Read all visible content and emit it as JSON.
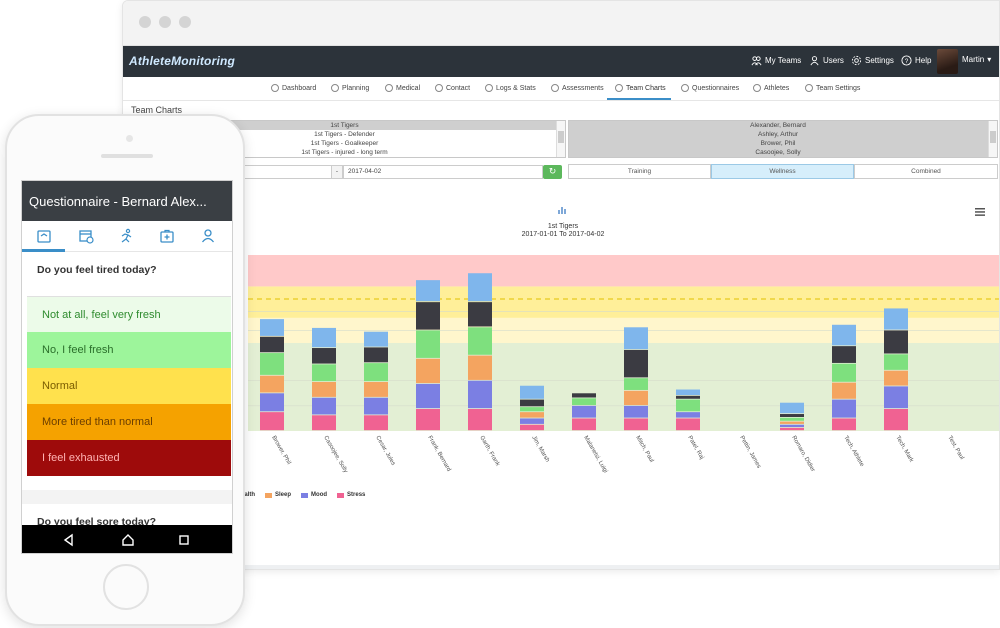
{
  "app": {
    "logo": "AthleteMonitoring",
    "top_nav": [
      {
        "label": "My Teams",
        "icon": "users-icon"
      },
      {
        "label": "Users",
        "icon": "user-icon"
      },
      {
        "label": "Settings",
        "icon": "gear-icon"
      },
      {
        "label": "Help",
        "icon": "help-icon"
      }
    ],
    "user_name": "Martin",
    "sub_nav": [
      {
        "label": "Dashboard"
      },
      {
        "label": "Planning"
      },
      {
        "label": "Medical"
      },
      {
        "label": "Contact"
      },
      {
        "label": "Logs & Stats"
      },
      {
        "label": "Assessments"
      },
      {
        "label": "Team Charts"
      },
      {
        "label": "Questionnaires"
      },
      {
        "label": "Athletes"
      },
      {
        "label": "Team Settings"
      }
    ],
    "active_tab": "Team Charts",
    "page_title": "Team Charts",
    "team_list": [
      "1st Tigers",
      "1st Tigers - Defender",
      "1st Tigers - Goalkeeper",
      "1st Tigers - injured - long term"
    ],
    "athlete_list": [
      "Alexander, Bernard",
      "Ashley, Arthur",
      "Brower, Phil",
      "Casoojee, Solly"
    ],
    "date_separator": "-",
    "date_to": "2017-04-02",
    "segments": [
      "Training",
      "Wellness",
      "Combined"
    ],
    "active_segment": "Wellness",
    "colors": {
      "accent": "#3b8ec8",
      "nav_bg": "#2c333a",
      "green": "#5cb85c"
    }
  },
  "chart_data": {
    "type": "bar",
    "stacked": true,
    "title": "1st Tigers",
    "subtitle": "2017-01-01 To 2017-04-02",
    "categories": [
      "Brower, Phil",
      "Casoojee, Solly",
      "Cesar, Jules",
      "Frank, Bernard",
      "Garth, Frank",
      "Jim, Marsh",
      "Malanetsi, Luigi",
      "Mitch, Paul",
      "Patel, Raj",
      "Pettin, James",
      "Romaro, Didier",
      "Tech, Athlete",
      "Tech, Mark",
      "Test, Paul"
    ],
    "series": [
      {
        "name": "Stress",
        "color": "#f06292",
        "values": [
          3,
          2.5,
          2.5,
          3.5,
          3.5,
          1,
          2,
          2,
          2,
          0,
          0.5,
          2,
          3.5,
          0
        ]
      },
      {
        "name": "Mood",
        "color": "#7b7fe3",
        "values": [
          3,
          2.8,
          2.8,
          4,
          4.5,
          1,
          2,
          2,
          1,
          0,
          0.5,
          3,
          3.6,
          0
        ]
      },
      {
        "name": "Sleep",
        "color": "#f4a460",
        "values": [
          2.8,
          2.5,
          2.5,
          4,
          4,
          1,
          0,
          2.4,
          0,
          0,
          0.5,
          2.7,
          2.5,
          0
        ]
      },
      {
        "name": "",
        "color": "#7ee07e",
        "values": [
          3.6,
          2.8,
          3,
          4.5,
          4.5,
          0.8,
          1.2,
          2,
          2,
          0,
          0.6,
          3,
          2.6,
          0
        ]
      },
      {
        "name": "",
        "color": "#3b3b42",
        "values": [
          2.6,
          2.6,
          2.5,
          4.5,
          4,
          1.2,
          0.8,
          4.5,
          0.6,
          0,
          0.6,
          2.8,
          3.8,
          0
        ]
      },
      {
        "name": "",
        "color": "#7fb6ec",
        "values": [
          2.8,
          3.2,
          2.5,
          3.5,
          4.6,
          2.2,
          0,
          3.6,
          1,
          0,
          1.8,
          3.4,
          3.5,
          0
        ]
      }
    ],
    "ylim": [
      0,
      28
    ],
    "bands": [
      {
        "from": 0,
        "to": 14,
        "color": "#e3efd4"
      },
      {
        "from": 14,
        "to": 18,
        "color": "#fff6cc"
      },
      {
        "from": 18,
        "to": 23,
        "color": "#ffef99"
      },
      {
        "from": 23,
        "to": 28,
        "color": "#ffc9c9"
      }
    ],
    "reference_line": 21
  },
  "phone": {
    "header": "Questionnaire - Bernard Alex...",
    "tabs": [
      "scale-icon",
      "calendar-icon",
      "runner-icon",
      "medkit-icon",
      "person-icon"
    ],
    "question1": "Do you feel tired today?",
    "options": [
      {
        "label": "Not at all, feel very fresh",
        "bg": "#ecfbe9",
        "fg": "#2e8b2e"
      },
      {
        "label": "No, I feel fresh",
        "bg": "#9df59b",
        "fg": "#2a6e2a"
      },
      {
        "label": "Normal",
        "bg": "#ffe14d",
        "fg": "#7a5c00"
      },
      {
        "label": "More tired than normal",
        "bg": "#f5a200",
        "fg": "#6b3e00"
      },
      {
        "label": "I feel exhausted",
        "bg": "#9e0b0b",
        "fg": "#ffb3b3"
      }
    ],
    "question2": "Do you feel sore today?"
  }
}
